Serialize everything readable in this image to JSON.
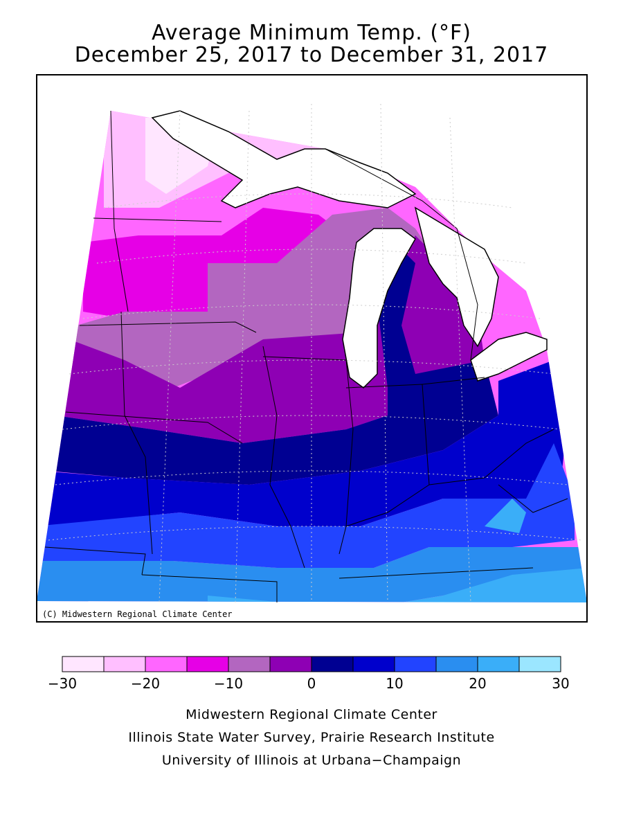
{
  "title": {
    "line1": "Average Minimum Temp. (°F)",
    "line2": "December 25, 2017 to December 31, 2017"
  },
  "copyright": "(C) Midwestern Regional Climate Center",
  "legend": {
    "ticks": [
      "−30",
      "−20",
      "−10",
      "0",
      "10",
      "20",
      "30"
    ],
    "bins": [
      {
        "range": "-30 to -25",
        "color": "#ffe6ff"
      },
      {
        "range": "-25 to -20",
        "color": "#ffbfff"
      },
      {
        "range": "-20 to -15",
        "color": "#ff66ff"
      },
      {
        "range": "-15 to -10",
        "color": "#e600e6"
      },
      {
        "range": "-10 to -5",
        "color": "#b366c0"
      },
      {
        "range": "-5 to 0",
        "color": "#8e00b4"
      },
      {
        "range": "0 to 5",
        "color": "#000092"
      },
      {
        "range": "5 to 10",
        "color": "#0000cc"
      },
      {
        "range": "10 to 15",
        "color": "#2244ff"
      },
      {
        "range": "15 to 20",
        "color": "#2a8ef0"
      },
      {
        "range": "20 to 25",
        "color": "#3aaef8"
      },
      {
        "range": "25 to 30",
        "color": "#9be6ff"
      }
    ]
  },
  "footer": {
    "line1": "Midwestern Regional Climate Center",
    "line2": "Illinois State Water Survey, Prairie Research Institute",
    "line3": "University of Illinois at Urbana−Champaign"
  }
}
